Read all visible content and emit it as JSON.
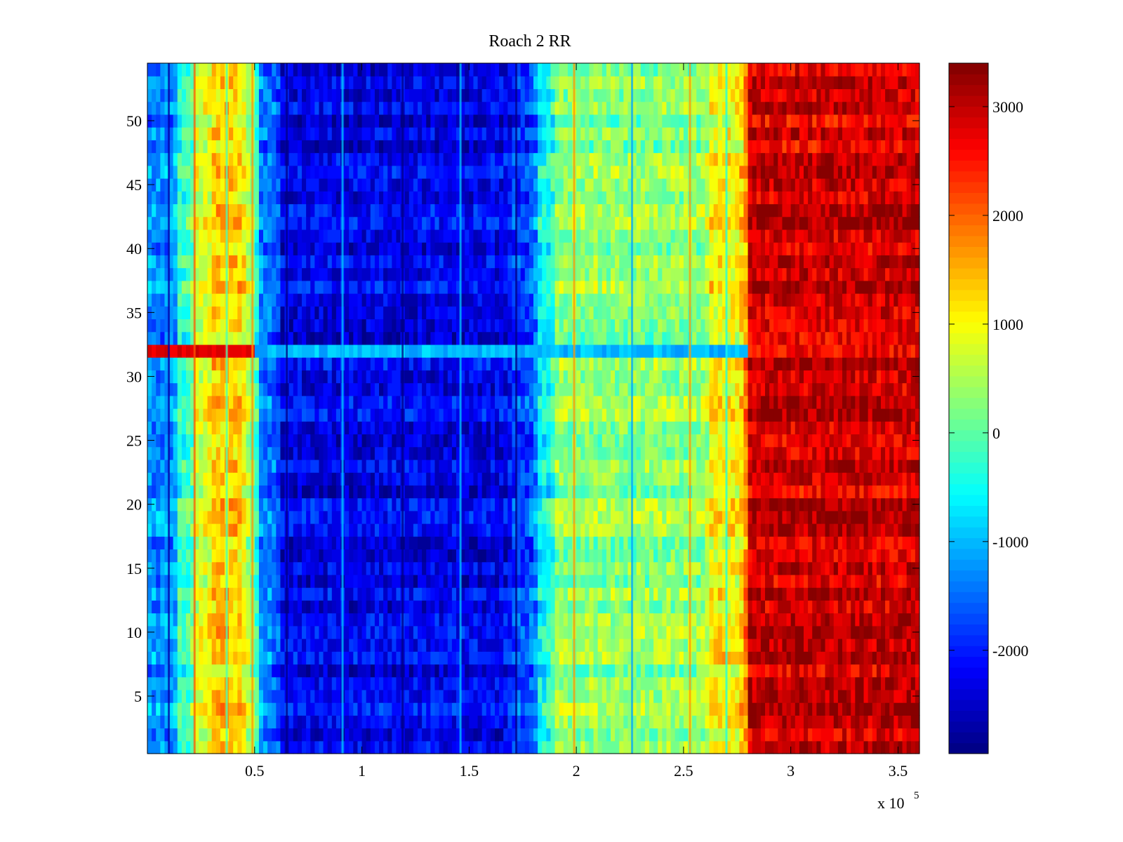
{
  "chart_data": {
    "type": "heatmap",
    "title": "Roach 2 RR",
    "xlabel": "",
    "ylabel": "",
    "x_multiplier_label": "x 10",
    "x_multiplier_exponent": "5",
    "xlim": [
      0,
      3.6
    ],
    "ylim": [
      0.5,
      54.5
    ],
    "xticks": [
      0.5,
      1,
      1.5,
      2,
      2.5,
      3,
      3.5
    ],
    "xtick_labels": [
      "0.5",
      "1",
      "1.5",
      "2",
      "2.5",
      "3",
      "3.5"
    ],
    "yticks": [
      5,
      10,
      15,
      20,
      25,
      30,
      35,
      40,
      45,
      50
    ],
    "ytick_labels": [
      "5",
      "10",
      "15",
      "20",
      "25",
      "30",
      "35",
      "40",
      "45",
      "50"
    ],
    "rows": 54,
    "colormap": "jet",
    "colorbar": {
      "clim": [
        -2950,
        3400
      ],
      "ticks": [
        -2000,
        -1000,
        0,
        1000,
        2000,
        3000
      ],
      "tick_labels": [
        "-2000",
        "-1000",
        "0",
        "1000",
        "2000",
        "3000"
      ],
      "levels": 64
    },
    "column_profile": [
      {
        "x_start": 0.0,
        "x_end": 0.15,
        "value": -1300
      },
      {
        "x_start": 0.15,
        "x_end": 0.22,
        "value": -300
      },
      {
        "x_start": 0.22,
        "x_end": 0.3,
        "value": 700
      },
      {
        "x_start": 0.3,
        "x_end": 0.46,
        "value": 1300
      },
      {
        "x_start": 0.46,
        "x_end": 0.52,
        "value": 500
      },
      {
        "x_start": 0.52,
        "x_end": 0.62,
        "value": -1400
      },
      {
        "x_start": 0.62,
        "x_end": 1.7,
        "value": -2300
      },
      {
        "x_start": 1.7,
        "x_end": 1.82,
        "value": -1800
      },
      {
        "x_start": 1.82,
        "x_end": 1.9,
        "value": -600
      },
      {
        "x_start": 1.9,
        "x_end": 2.2,
        "value": 300
      },
      {
        "x_start": 2.2,
        "x_end": 2.62,
        "value": 300
      },
      {
        "x_start": 2.62,
        "x_end": 2.8,
        "value": 1000
      },
      {
        "x_start": 2.8,
        "x_end": 3.6,
        "value": 2900
      }
    ],
    "vertical_streaks_x": [
      0.1,
      0.22,
      0.37,
      0.49,
      0.65,
      0.91,
      1.19,
      1.46,
      1.72,
      1.99,
      2.26,
      2.53,
      2.7
    ],
    "anomalous_row": {
      "y": 32,
      "left_value": 2800,
      "right_value": -1000
    }
  }
}
